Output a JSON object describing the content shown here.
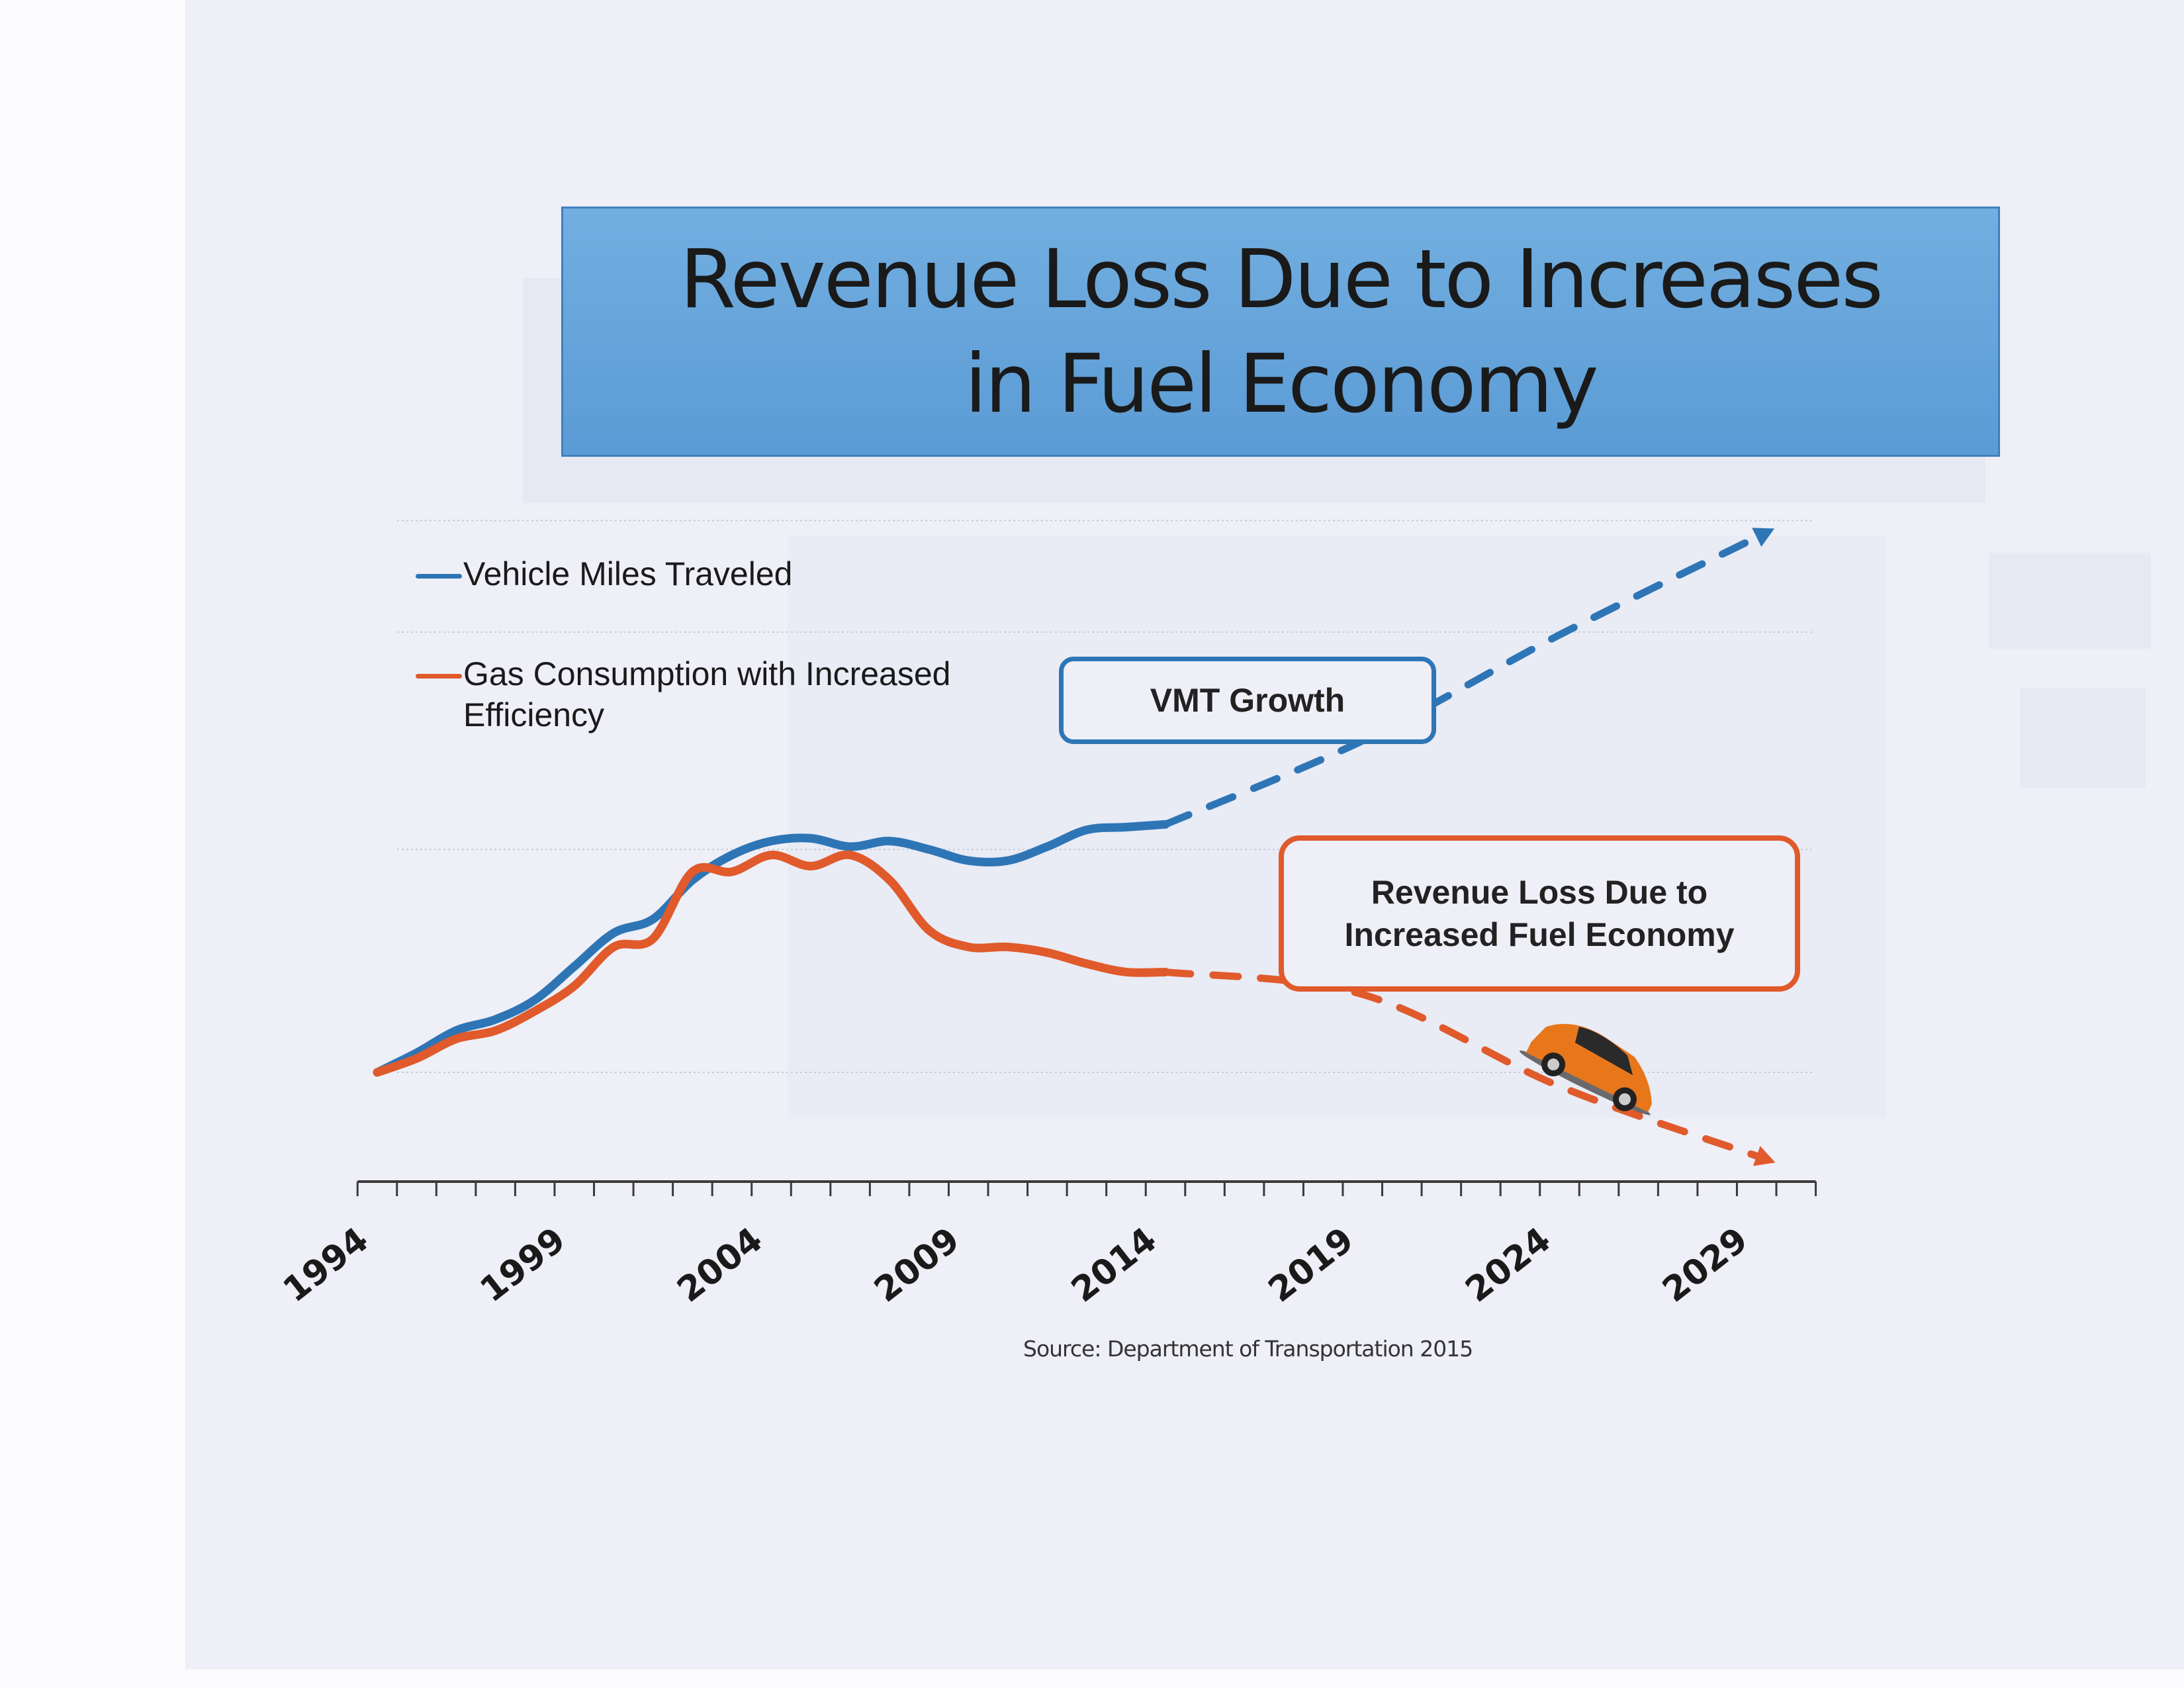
{
  "slide": {
    "title": "Revenue Loss Due to Increases\nin Fuel Economy",
    "source": "Source: Department of Transportation 2015",
    "callouts": {
      "vmt": "VMT Growth",
      "revenue": "Revenue Loss Due to\nIncreased Fuel Economy"
    },
    "colors": {
      "title_fill": "#5b9bd5",
      "vmt": "#2e75b6",
      "gas": "#e05a2b",
      "paper": "#eeeff7"
    },
    "car_icon": "orange-car-icon"
  },
  "chart_data": {
    "type": "line",
    "title": "Revenue Loss Due to Increases in Fuel Economy",
    "xlabel": "",
    "ylabel": "",
    "x_range": [
      1994,
      2030
    ],
    "y_range": [
      -0.4,
      2.0
    ],
    "y_unit": "relative index (1994 = 0)",
    "grid": true,
    "legend_placement": "top-left",
    "tick_labels": [
      "1994",
      "1999",
      "2004",
      "2009",
      "2014",
      "2019",
      "2024",
      "2029"
    ],
    "series": [
      {
        "name": "Vehicle Miles Traveled",
        "color": "#2e75b6",
        "style": "solid",
        "x": [
          1994,
          1995,
          1996,
          1997,
          1998,
          1999,
          2000,
          2001,
          2002,
          2003,
          2004,
          2005,
          2006,
          2007,
          2008,
          2009,
          2010,
          2011,
          2012,
          2013,
          2014
        ],
        "values": [
          0,
          0.07,
          0.15,
          0.19,
          0.26,
          0.38,
          0.5,
          0.55,
          0.69,
          0.78,
          0.83,
          0.84,
          0.81,
          0.83,
          0.8,
          0.76,
          0.76,
          0.81,
          0.87,
          0.88,
          0.89
        ]
      },
      {
        "name": "Vehicle Miles Traveled (projection)",
        "color": "#2e75b6",
        "style": "dashed",
        "x": [
          2014,
          2019,
          2024,
          2029
        ],
        "values": [
          0.89,
          1.19,
          1.57,
          1.92
        ]
      },
      {
        "name": "Gas Consumption with Increased Efficiency",
        "color": "#e05a2b",
        "style": "solid",
        "x": [
          1994,
          1995,
          1996,
          1997,
          1998,
          1999,
          2000,
          2001,
          2002,
          2003,
          2004,
          2005,
          2006,
          2007,
          2008,
          2009,
          2010,
          2011,
          2012,
          2013,
          2014
        ],
        "values": [
          0,
          0.05,
          0.12,
          0.15,
          0.22,
          0.31,
          0.45,
          0.48,
          0.72,
          0.72,
          0.78,
          0.74,
          0.78,
          0.69,
          0.51,
          0.45,
          0.45,
          0.43,
          0.39,
          0.36,
          0.36
        ]
      },
      {
        "name": "Gas Consumption with Increased Efficiency (projection)",
        "color": "#e05a2b",
        "style": "dashed",
        "x": [
          2014,
          2019,
          2024,
          2029
        ],
        "values": [
          0.36,
          0.28,
          -0.05,
          -0.3
        ]
      }
    ],
    "legend": [
      "Vehicle Miles Traveled",
      "Gas Consumption with Increased\nEfficiency"
    ],
    "annotations": [
      "VMT Growth",
      "Revenue Loss Due to\nIncreased Fuel Economy"
    ]
  }
}
